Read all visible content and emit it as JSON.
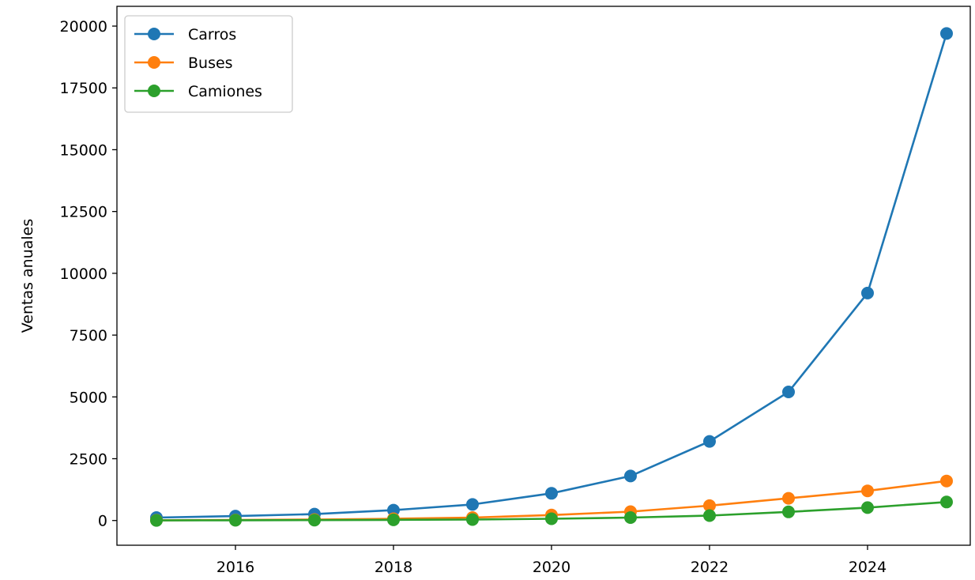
{
  "chart_data": {
    "type": "line",
    "title": "",
    "xlabel": "",
    "ylabel": "Ventas anuales",
    "x": [
      2015,
      2016,
      2017,
      2018,
      2019,
      2020,
      2021,
      2022,
      2023,
      2024,
      2025
    ],
    "xlim": [
      2014.5,
      2025.3
    ],
    "ylim": [
      -1000,
      20800
    ],
    "xticks": [
      2016,
      2018,
      2020,
      2022,
      2024
    ],
    "yticks": [
      0,
      2500,
      5000,
      7500,
      10000,
      12500,
      15000,
      17500,
      20000
    ],
    "grid": false,
    "legend_position": "upper-left",
    "series": [
      {
        "name": "Carros",
        "color": "#1f77b4",
        "values": [
          120,
          180,
          260,
          420,
          650,
          1100,
          1800,
          3200,
          5200,
          9200,
          19700
        ]
      },
      {
        "name": "Buses",
        "color": "#ff7f0e",
        "values": [
          10,
          20,
          40,
          70,
          120,
          220,
          360,
          600,
          900,
          1200,
          1600
        ]
      },
      {
        "name": "Camiones",
        "color": "#2ca02c",
        "values": [
          5,
          10,
          15,
          25,
          40,
          70,
          120,
          200,
          350,
          520,
          750
        ]
      }
    ]
  }
}
